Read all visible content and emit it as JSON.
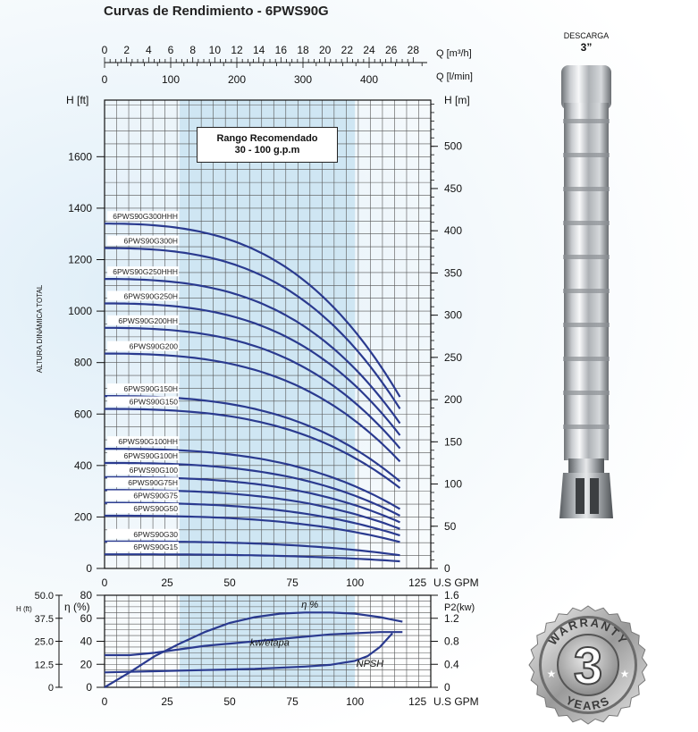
{
  "title": "Curvas de Rendimiento - 6PWS90G",
  "recommended_box": {
    "line1": "Rango Recomendado",
    "line2": "30 - 100 g.p.m"
  },
  "pump": {
    "label1": "DESCARGA",
    "label2": "3”"
  },
  "badge": {
    "top_text": "WARRANTY",
    "number": "3",
    "bottom_text": "YEARS"
  },
  "colors": {
    "curve": "#2a3a8f",
    "band": "#cfe6f3",
    "grid": "#555555",
    "axis": "#111111"
  },
  "chart_data": [
    {
      "type": "line",
      "xlabel": "U.S GPM",
      "xlim": [
        0,
        125
      ],
      "x_ticks": [
        0,
        25,
        50,
        75,
        100,
        125
      ],
      "y_left_label": "H [ft]",
      "y_left_lim": [
        0,
        1800
      ],
      "y_left_ticks": [
        0,
        200,
        400,
        600,
        800,
        1000,
        1200,
        1400,
        1600
      ],
      "y_left_title": "ALTURA DINÁMICA TOTAL",
      "y_right_label": "H [m]",
      "y_right_ticks": [
        0,
        50,
        100,
        150,
        200,
        250,
        300,
        350,
        400,
        450,
        500
      ],
      "top_axis_1": {
        "label": "Q [m³/h]",
        "ticks": [
          0,
          2,
          4,
          6,
          8,
          10,
          12,
          14,
          16,
          18,
          20,
          22,
          24,
          26,
          28
        ]
      },
      "top_axis_2": {
        "label": "Q [l/min]",
        "ticks": [
          0,
          100,
          200,
          300,
          400
        ]
      },
      "recommended_range_gpm": [
        30,
        100
      ],
      "grid": true,
      "series": [
        {
          "name": "6PWS90G300HHH",
          "shutoff": 1340,
          "end": 650
        },
        {
          "name": "6PWS90G300H",
          "shutoff": 1245,
          "end": 605
        },
        {
          "name": "6PWS90G250HHH",
          "shutoff": 1125,
          "end": 550
        },
        {
          "name": "6PWS90G250H",
          "shutoff": 1030,
          "end": 505
        },
        {
          "name": "6PWS90G200HH",
          "shutoff": 935,
          "end": 455
        },
        {
          "name": "6PWS90G200",
          "shutoff": 835,
          "end": 405
        },
        {
          "name": "6PWS90G150H",
          "shutoff": 670,
          "end": 330
        },
        {
          "name": "6PWS90G150",
          "shutoff": 620,
          "end": 305
        },
        {
          "name": "6PWS90G100HH",
          "shutoff": 465,
          "end": 225
        },
        {
          "name": "6PWS90G100H",
          "shutoff": 410,
          "end": 200
        },
        {
          "name": "6PWS90G100",
          "shutoff": 355,
          "end": 175
        },
        {
          "name": "6PWS90G75H",
          "shutoff": 305,
          "end": 150
        },
        {
          "name": "6PWS90G75",
          "shutoff": 255,
          "end": 125
        },
        {
          "name": "6PWS90G50",
          "shutoff": 205,
          "end": 100
        },
        {
          "name": "6PWS90G30",
          "shutoff": 105,
          "end": 50
        },
        {
          "name": "6PWS90G15",
          "shutoff": 55,
          "end": 27
        }
      ]
    },
    {
      "type": "line",
      "xlabel": "U.S GPM",
      "xlim": [
        0,
        125
      ],
      "x_ticks": [
        0,
        25,
        50,
        75,
        100,
        125
      ],
      "y_h_label": "H (ft)",
      "y_h_ticks": [
        "0",
        "12.5",
        "25.0",
        "37.5",
        "50.0"
      ],
      "y_eta_label": "η (%)",
      "y_eta_lim": [
        0,
        80
      ],
      "y_eta_ticks": [
        0,
        20,
        40,
        60,
        80
      ],
      "y_p2_label": "P2(kw)",
      "y_p2_ticks": [
        "0",
        "0.4",
        "0.8",
        "1.2",
        "1.6"
      ],
      "recommended_range_gpm": [
        30,
        100
      ],
      "grid": true,
      "series": [
        {
          "name": "η %",
          "axis": "eta",
          "x": [
            0,
            10,
            20,
            30,
            40,
            50,
            60,
            70,
            80,
            90,
            100,
            110,
            119
          ],
          "y": [
            0,
            13,
            27,
            38,
            48,
            56,
            61,
            64,
            65,
            65,
            64,
            61,
            57
          ]
        },
        {
          "name": "kw/etapa",
          "axis": "eta",
          "x": [
            0,
            10,
            20,
            30,
            40,
            50,
            60,
            70,
            80,
            90,
            100,
            110,
            119
          ],
          "y": [
            28,
            28,
            30,
            33,
            36,
            38,
            40,
            42,
            44,
            46,
            47,
            48,
            48
          ]
        },
        {
          "name": "NPSH",
          "axis": "eta",
          "x": [
            0,
            20,
            40,
            60,
            80,
            90,
            100,
            105,
            110,
            115
          ],
          "y": [
            13,
            14,
            15,
            16,
            18,
            19.5,
            23,
            27,
            35,
            47
          ]
        }
      ]
    }
  ]
}
